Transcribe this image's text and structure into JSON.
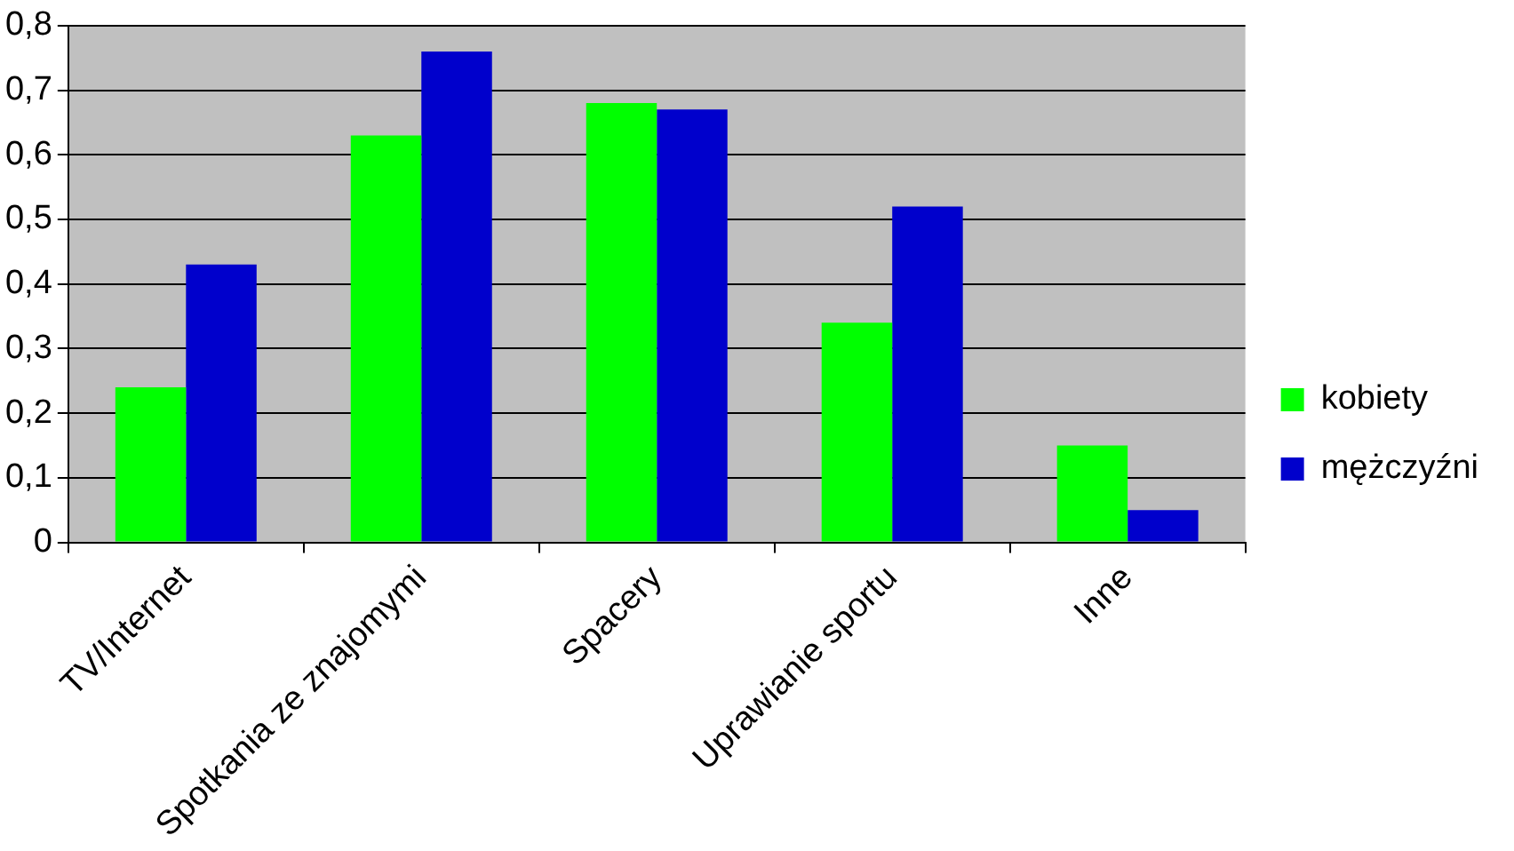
{
  "chart_data": {
    "type": "bar",
    "categories": [
      "TV/Internet",
      "Spotkania ze znajomymi",
      "Spacery",
      "Uprawianie sportu",
      "Inne"
    ],
    "series": [
      {
        "name": "kobiety",
        "color": "#00ff00",
        "values": [
          0.24,
          0.63,
          0.68,
          0.34,
          0.15
        ]
      },
      {
        "name": "mężczyźni",
        "color": "#0000cc",
        "values": [
          0.43,
          0.76,
          0.67,
          0.52,
          0.05
        ]
      }
    ],
    "ylim": [
      0,
      0.8
    ],
    "yticks": [
      {
        "value": 0,
        "label": "0"
      },
      {
        "value": 0.1,
        "label": "0,1"
      },
      {
        "value": 0.2,
        "label": "0,2"
      },
      {
        "value": 0.3,
        "label": "0,3"
      },
      {
        "value": 0.4,
        "label": "0,4"
      },
      {
        "value": 0.5,
        "label": "0,5"
      },
      {
        "value": 0.6,
        "label": "0,6"
      },
      {
        "value": 0.7,
        "label": "0,7"
      },
      {
        "value": 0.8,
        "label": "0,8"
      }
    ],
    "grid": "y",
    "legend": "right"
  }
}
